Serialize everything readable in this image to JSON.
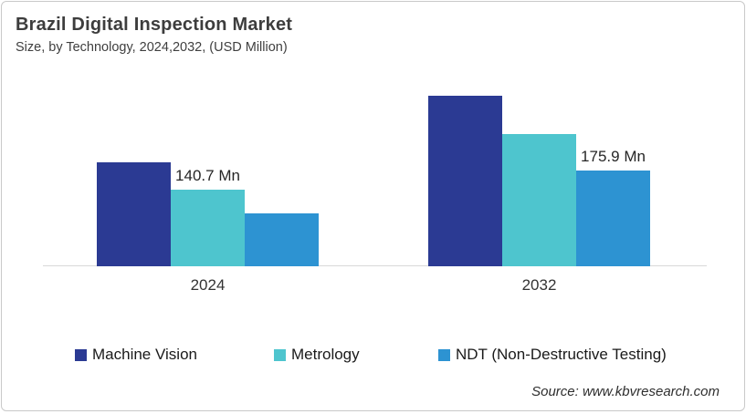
{
  "header": {
    "title": "Brazil Digital Inspection Market",
    "subtitle": "Size, by Technology, 2024,2032, (USD Million)"
  },
  "chart_data": {
    "type": "bar",
    "title": "Brazil Digital Inspection Market",
    "subtitle": "Size, by Technology, 2024,2032, (USD Million)",
    "unit": "USD Million",
    "categories": [
      "2024",
      "2032"
    ],
    "series": [
      {
        "name": "Machine Vision",
        "color": "#2B3A93",
        "values": [
          191.0,
          313.2
        ],
        "labels": [
          "",
          ""
        ]
      },
      {
        "name": "Metrology",
        "color": "#4EC5CE",
        "values": [
          140.7,
          242.9
        ],
        "labels": [
          "140.7 Mn",
          ""
        ]
      },
      {
        "name": "NDT (Non-Destructive Testing)",
        "color": "#2D93D2",
        "values": [
          97.2,
          175.9
        ],
        "labels": [
          "",
          "175.9 Mn"
        ]
      }
    ],
    "visible_data_labels": [
      "140.7 Mn",
      "175.9 Mn"
    ],
    "ylim": [
      0,
      351.75
    ],
    "grid": false,
    "axis_line_color": "#d8d8d8",
    "legend_position": "bottom"
  },
  "legend": {
    "items": [
      {
        "label": "Machine Vision",
        "color": "#2B3A93"
      },
      {
        "label": "Metrology",
        "color": "#4EC5CE"
      },
      {
        "label": "NDT (Non-Destructive Testing)",
        "color": "#2D93D2"
      }
    ]
  },
  "source": "Source: www.kbvresearch.com"
}
